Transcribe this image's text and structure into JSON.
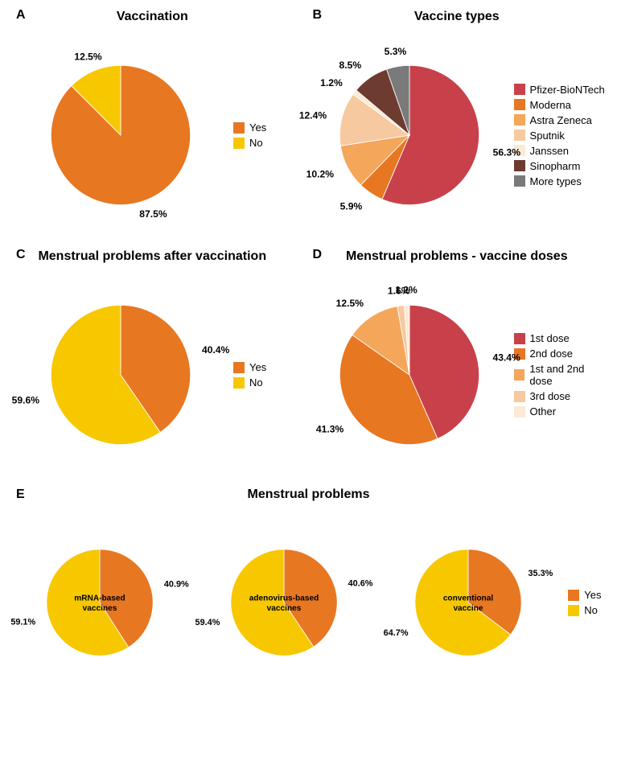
{
  "colors": {
    "orange": "#e87722",
    "yellow": "#f7c800",
    "crimson": "#c8414a",
    "orange2": "#f08a3c",
    "orange3": "#f4a65a",
    "peach": "#f7c9a0",
    "cream": "#fce9d6",
    "brown": "#6d3b2f",
    "grey": "#7a7a7a",
    "black": "#000000"
  },
  "panelA": {
    "letter": "A",
    "title": "Vaccination",
    "type": "pie",
    "radius": 100,
    "slices": [
      {
        "label": "Yes",
        "value": 87.5,
        "colorKey": "orange",
        "text": "87.5%"
      },
      {
        "label": "No",
        "value": 12.5,
        "colorKey": "yellow",
        "text": "12.5%"
      }
    ],
    "legend": [
      {
        "label": "Yes",
        "colorKey": "orange"
      },
      {
        "label": "No",
        "colorKey": "yellow"
      }
    ]
  },
  "panelB": {
    "letter": "B",
    "title": "Vaccine types",
    "type": "pie",
    "radius": 100,
    "slices": [
      {
        "label": "Pfizer-BioNTech",
        "value": 56.3,
        "colorKey": "crimson",
        "text": "56.3%"
      },
      {
        "label": "Moderna",
        "value": 5.9,
        "colorKey": "orange",
        "text": "5.9%"
      },
      {
        "label": "Astra Zeneca",
        "value": 10.2,
        "colorKey": "orange3",
        "text": "10.2%"
      },
      {
        "label": "Sputnik",
        "value": 12.4,
        "colorKey": "peach",
        "text": "12.4%"
      },
      {
        "label": "Janssen",
        "value": 1.2,
        "colorKey": "cream",
        "text": "1.2%"
      },
      {
        "label": "Sinopharm",
        "value": 8.5,
        "colorKey": "brown",
        "text": "8.5%"
      },
      {
        "label": "More types",
        "value": 5.3,
        "colorKey": "grey",
        "text": "5.3%"
      }
    ],
    "legend": [
      {
        "label": "Pfizer-BioNTech",
        "colorKey": "crimson"
      },
      {
        "label": "Moderna",
        "colorKey": "orange"
      },
      {
        "label": "Astra Zeneca",
        "colorKey": "orange3"
      },
      {
        "label": "Sputnik",
        "colorKey": "peach"
      },
      {
        "label": "Janssen",
        "colorKey": "cream"
      },
      {
        "label": "Sinopharm",
        "colorKey": "brown"
      },
      {
        "label": "More types",
        "colorKey": "grey"
      }
    ]
  },
  "panelC": {
    "letter": "C",
    "title": "Menstrual problems after vaccination",
    "type": "pie",
    "radius": 100,
    "slices": [
      {
        "label": "Yes",
        "value": 40.4,
        "colorKey": "orange",
        "text": "40.4%"
      },
      {
        "label": "No",
        "value": 59.6,
        "colorKey": "yellow",
        "text": "59.6%"
      }
    ],
    "legend": [
      {
        "label": "Yes",
        "colorKey": "orange"
      },
      {
        "label": "No",
        "colorKey": "yellow"
      }
    ]
  },
  "panelD": {
    "letter": "D",
    "title": "Menstrual problems - vaccine doses",
    "type": "pie",
    "radius": 100,
    "slices": [
      {
        "label": "1st dose",
        "value": 43.4,
        "colorKey": "crimson",
        "text": "43.4%"
      },
      {
        "label": "2nd dose",
        "value": 41.3,
        "colorKey": "orange",
        "text": "41.3%"
      },
      {
        "label": "1st and 2nd dose",
        "value": 12.5,
        "colorKey": "orange3",
        "text": "12.5%"
      },
      {
        "label": "3rd dose",
        "value": 1.6,
        "colorKey": "peach",
        "text": "1.6%"
      },
      {
        "label": "Other",
        "value": 1.2,
        "colorKey": "cream",
        "text": "1.2%"
      }
    ],
    "legend": [
      {
        "label": "1st dose",
        "colorKey": "crimson"
      },
      {
        "label": "2nd dose",
        "colorKey": "orange"
      },
      {
        "label": "1st and 2nd dose",
        "colorKey": "orange3"
      },
      {
        "label": "3rd dose",
        "colorKey": "peach"
      },
      {
        "label": "Other",
        "colorKey": "cream"
      }
    ]
  },
  "panelE": {
    "letter": "E",
    "title": "Menstrual problems",
    "type": "pie-row",
    "radius": 85,
    "charts": [
      {
        "center": [
          "mRNA-based",
          "vaccines"
        ],
        "slices": [
          {
            "label": "Yes",
            "value": 40.9,
            "colorKey": "orange",
            "text": "40.9%"
          },
          {
            "label": "No",
            "value": 59.1,
            "colorKey": "yellow",
            "text": "59.1%"
          }
        ]
      },
      {
        "center": [
          "adenovirus-based",
          "vaccines"
        ],
        "slices": [
          {
            "label": "Yes",
            "value": 40.6,
            "colorKey": "orange",
            "text": "40.6%"
          },
          {
            "label": "No",
            "value": 59.4,
            "colorKey": "yellow",
            "text": "59.4%"
          }
        ]
      },
      {
        "center": [
          "conventional",
          "vaccine"
        ],
        "slices": [
          {
            "label": "Yes",
            "value": 35.3,
            "colorKey": "orange",
            "text": "35.3%"
          },
          {
            "label": "No",
            "value": 64.7,
            "colorKey": "yellow",
            "text": "64.7%"
          }
        ]
      }
    ],
    "legend": [
      {
        "label": "Yes",
        "colorKey": "orange"
      },
      {
        "label": "No",
        "colorKey": "yellow"
      }
    ]
  },
  "label_fontsize": 14,
  "title_fontsize": 16,
  "slice_stroke": "#ffffff",
  "slice_stroke_width": 1
}
